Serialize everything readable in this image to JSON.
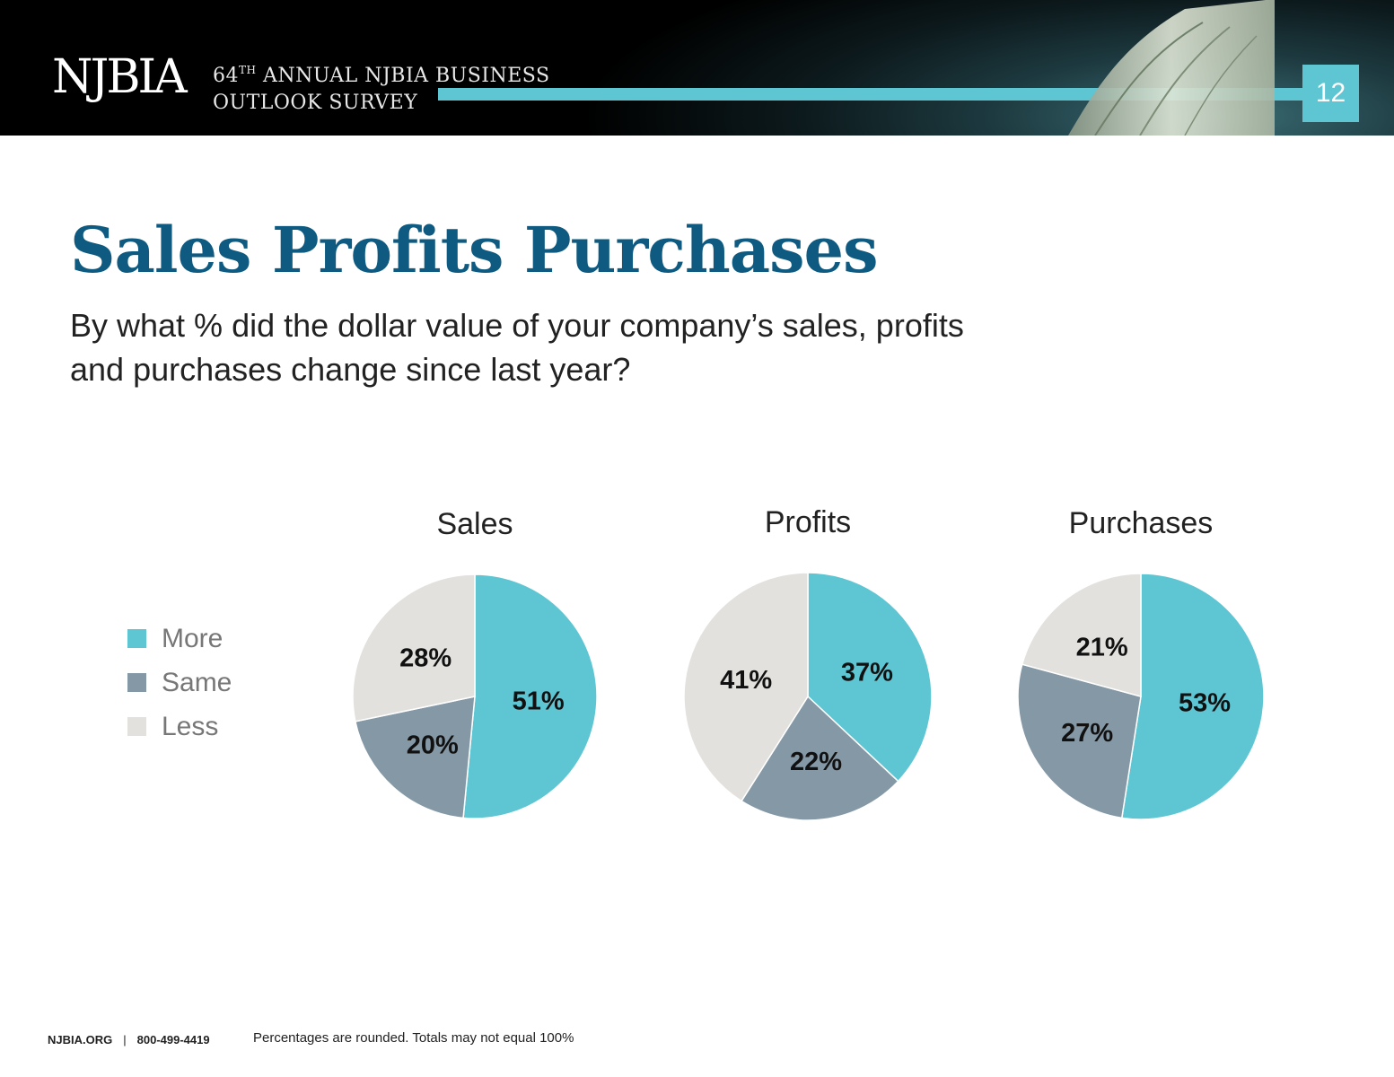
{
  "header": {
    "logo_text": "NJBIA",
    "survey_line1_num": "64",
    "survey_line1_sup": "TH",
    "survey_line1_rest": " ANNUAL NJBIA BUSINESS",
    "survey_line2": "OUTLOOK SURVEY",
    "page_number": "12",
    "accent_color": "#5ec5d2"
  },
  "title": "Sales Profits Purchases",
  "question": "By what % did the dollar value of your company’s sales, profits and purchases change since last year?",
  "legend": [
    {
      "label": "More",
      "color": "#5ec5d2"
    },
    {
      "label": "Same",
      "color": "#8598a5"
    },
    {
      "label": "Less",
      "color": "#e2e1de"
    }
  ],
  "chart_data": [
    {
      "type": "pie",
      "title": "Sales",
      "slices": [
        {
          "name": "More",
          "value": 51,
          "label": "51%"
        },
        {
          "name": "Same",
          "value": 20,
          "label": "20%"
        },
        {
          "name": "Less",
          "value": 28,
          "label": "28%"
        }
      ]
    },
    {
      "type": "pie",
      "title": "Profits",
      "slices": [
        {
          "name": "More",
          "value": 37,
          "label": "37%"
        },
        {
          "name": "Same",
          "value": 22,
          "label": "22%"
        },
        {
          "name": "Less",
          "value": 41,
          "label": "41%"
        }
      ]
    },
    {
      "type": "pie",
      "title": "Purchases",
      "slices": [
        {
          "name": "More",
          "value": 53,
          "label": "53%"
        },
        {
          "name": "Same",
          "value": 27,
          "label": "27%"
        },
        {
          "name": "Less",
          "value": 21,
          "label": "21%"
        }
      ]
    }
  ],
  "footer": {
    "website": "NJBIA.ORG",
    "separator": "|",
    "phone": "800-499-4419",
    "note": "Percentages are rounded. Totals may not equal 100%"
  }
}
